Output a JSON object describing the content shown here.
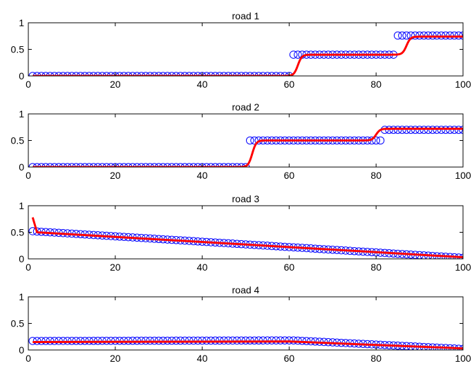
{
  "chart_data": [
    {
      "type": "scatter",
      "title": "road 1",
      "xlim": [
        0,
        100
      ],
      "ylim": [
        0,
        1
      ],
      "x_ticks": [
        0,
        20,
        40,
        60,
        80,
        100
      ],
      "y_ticks": [
        0,
        0.5,
        1
      ],
      "grid": false,
      "segments": [
        {
          "x_start": 1,
          "x_end": 60,
          "y_start": 0.0,
          "y_end": 0.0
        },
        {
          "x_start": 61,
          "x_end": 84,
          "y_start": 0.4,
          "y_end": 0.4
        },
        {
          "x_start": 85,
          "x_end": 100,
          "y_start": 0.76,
          "y_end": 0.76
        }
      ],
      "fit_steps": [
        {
          "x_mid": 62,
          "from": 0.0,
          "to": 0.4
        },
        {
          "x_mid": 87,
          "from": 0.4,
          "to": 0.74
        }
      ],
      "colors": {
        "markers": "#0000ff",
        "fit": "#ff0000"
      }
    },
    {
      "type": "scatter",
      "title": "road 2",
      "xlim": [
        0,
        100
      ],
      "ylim": [
        0,
        1
      ],
      "x_ticks": [
        0,
        20,
        40,
        60,
        80,
        100
      ],
      "y_ticks": [
        0,
        0.5,
        1
      ],
      "grid": false,
      "segments": [
        {
          "x_start": 1,
          "x_end": 50,
          "y_start": 0.0,
          "y_end": 0.0
        },
        {
          "x_start": 51,
          "x_end": 81,
          "y_start": 0.5,
          "y_end": 0.5
        },
        {
          "x_start": 82,
          "x_end": 100,
          "y_start": 0.7,
          "y_end": 0.7
        }
      ],
      "fit_steps": [
        {
          "x_mid": 51.5,
          "from": 0.0,
          "to": 0.5
        },
        {
          "x_mid": 80,
          "from": 0.5,
          "to": 0.72
        }
      ],
      "colors": {
        "markers": "#0000ff",
        "fit": "#ff0000"
      }
    },
    {
      "type": "scatter",
      "title": "road 3",
      "xlim": [
        0,
        100
      ],
      "ylim": [
        0,
        1
      ],
      "x_ticks": [
        0,
        20,
        40,
        60,
        80,
        100
      ],
      "y_ticks": [
        0,
        0.5,
        1
      ],
      "grid": false,
      "segments": [
        {
          "x_start": 1,
          "x_end": 100,
          "y_start": 0.52,
          "y_end": 0.02
        }
      ],
      "fit_line": [
        [
          1,
          0.78
        ],
        [
          2,
          0.5
        ],
        [
          100,
          0.03
        ]
      ],
      "colors": {
        "markers": "#0000ff",
        "fit": "#ff0000"
      }
    },
    {
      "type": "scatter",
      "title": "road 4",
      "xlim": [
        0,
        100
      ],
      "ylim": [
        0,
        1
      ],
      "x_ticks": [
        0,
        20,
        40,
        60,
        80,
        100
      ],
      "y_ticks": [
        0,
        0.5,
        1
      ],
      "grid": false,
      "segments": [
        {
          "x_start": 1,
          "x_end": 60,
          "y_start": 0.17,
          "y_end": 0.18
        },
        {
          "x_start": 61,
          "x_end": 100,
          "y_start": 0.18,
          "y_end": 0.02
        }
      ],
      "fit_line": [
        [
          1,
          0.15
        ],
        [
          60,
          0.16
        ],
        [
          100,
          0.03
        ]
      ],
      "colors": {
        "markers": "#0000ff",
        "fit": "#ff0000"
      }
    }
  ]
}
